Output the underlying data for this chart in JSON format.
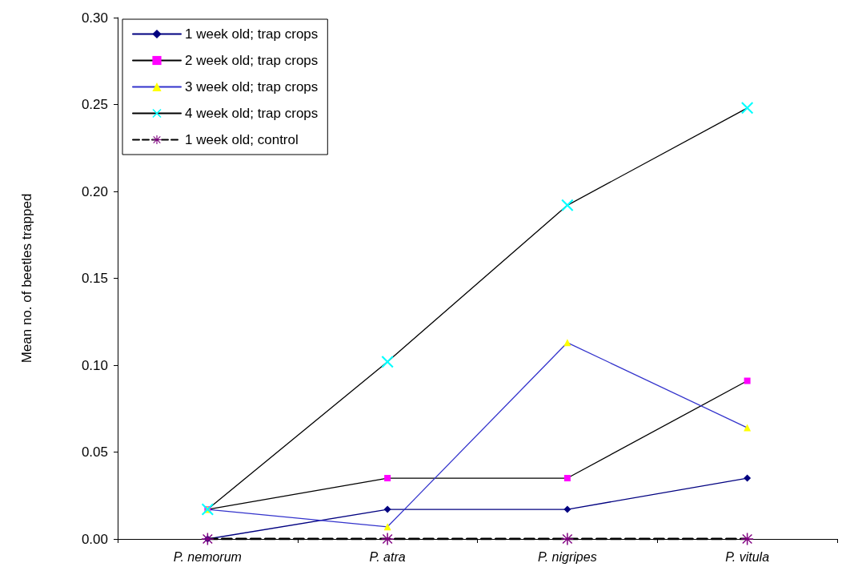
{
  "chart_data": {
    "type": "line",
    "ylabel": "Mean no. of beetles trapped",
    "categories": [
      "P. nemorum",
      "P. atra",
      "P. nigripes",
      "P. vitula"
    ],
    "series": [
      {
        "name": "1 week old; trap crops",
        "color": "#000080",
        "colors": [
          "#000080",
          "#000080",
          "#000080",
          "#000080"
        ],
        "marker": "diamond",
        "line_style": "solid",
        "values": [
          0,
          0.017,
          0.017,
          0.035
        ]
      },
      {
        "name": "2 week old; trap crops",
        "color": "#000000",
        "colors": [
          "#ff00ff",
          "#ff00ff",
          "#ff00ff",
          "#ff00ff"
        ],
        "marker": "square",
        "line_style": "solid",
        "values": [
          0.017,
          0.035,
          0.035,
          0.091
        ]
      },
      {
        "name": "3 week old; trap crops",
        "color": "#3333cc",
        "colors": [
          "#ffff00",
          "#ffff00",
          "#ffff00",
          "#ffff00"
        ],
        "marker": "triangle",
        "line_style": "solid",
        "values": [
          0.017,
          0.007,
          0.113,
          0.064
        ]
      },
      {
        "name": "4 week old; trap crops",
        "color": "#000000",
        "colors": [
          "#00ffff",
          "#00ffff",
          "#00ffff",
          "#00ffff"
        ],
        "marker": "cross",
        "line_style": "solid",
        "values": [
          0.017,
          0.102,
          0.192,
          0.248
        ]
      },
      {
        "name": "1 week old; control",
        "color": "#000000",
        "colors": [
          "#800080",
          "#800080",
          "#800080",
          "#800080"
        ],
        "marker": "star",
        "line_style": "dashed",
        "values": [
          0,
          0,
          0,
          0
        ]
      }
    ],
    "ylim": [
      0,
      0.3
    ],
    "yticks": [
      {
        "value": 0,
        "label": "0.00"
      },
      0.05,
      {
        "value": 0.1,
        "label": "0.10"
      },
      0.15,
      {
        "value": 0.2,
        "label": "0.20"
      },
      0.25,
      {
        "value": 0.3,
        "label": "0.30"
      }
    ],
    "grid": false,
    "legend": "top left"
  }
}
